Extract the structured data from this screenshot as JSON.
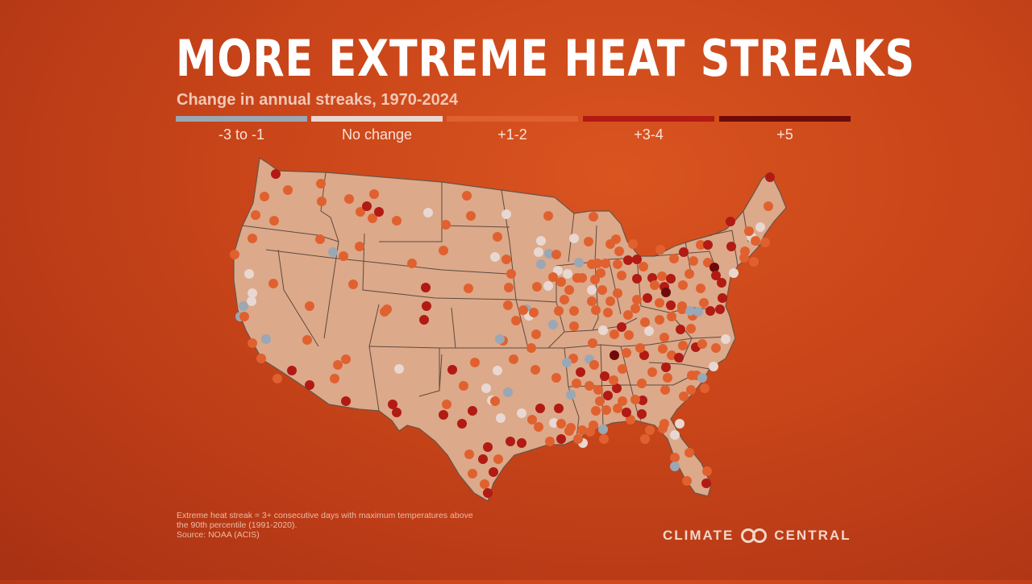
{
  "title": "MORE EXTREME HEAT STREAKS",
  "subtitle": "Change in annual streaks, 1970-2024",
  "legend": [
    {
      "label": "-3 to -1",
      "color": "#9aa7b5"
    },
    {
      "label": "No change",
      "color": "#e9d7d1"
    },
    {
      "label": "+1-2",
      "color": "#e0612f"
    },
    {
      "label": "+3-4",
      "color": "#b21a14"
    },
    {
      "label": "+5",
      "color": "#6e0b09"
    }
  ],
  "footnote": {
    "line1": "Extreme heat streak = 3+ consecutive days with maximum temperatures above",
    "line2": "the 90th percentile (1991-2020).",
    "line3": "Source: NOAA (ACIS)"
  },
  "brand": {
    "left": "CLIMATE",
    "right": "CENTRAL",
    "icon": "linked-rings-icon"
  },
  "map": {
    "land_color": "#dca98a",
    "border_color": "#5e4a40",
    "stations_by_category": {
      "-3 to -1": 23,
      "No change": 30,
      "+1-2": 170,
      "+3-4": 77,
      "+5": 3
    }
  }
}
